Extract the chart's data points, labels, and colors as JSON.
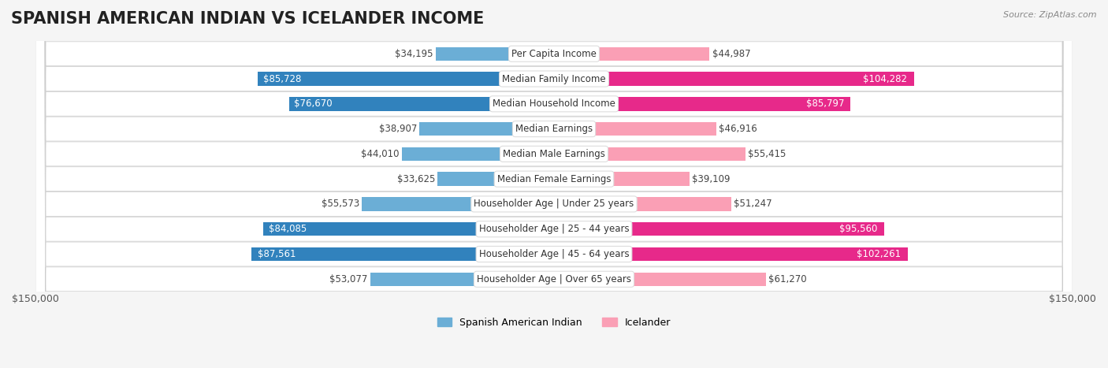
{
  "title": "SPANISH AMERICAN INDIAN VS ICELANDER INCOME",
  "source": "Source: ZipAtlas.com",
  "categories": [
    "Per Capita Income",
    "Median Family Income",
    "Median Household Income",
    "Median Earnings",
    "Median Male Earnings",
    "Median Female Earnings",
    "Householder Age | Under 25 years",
    "Householder Age | 25 - 44 years",
    "Householder Age | 45 - 64 years",
    "Householder Age | Over 65 years"
  ],
  "spanish_values": [
    34195,
    85728,
    76670,
    38907,
    44010,
    33625,
    55573,
    84085,
    87561,
    53077
  ],
  "icelander_values": [
    44987,
    104282,
    85797,
    46916,
    55415,
    39109,
    51247,
    95560,
    102261,
    61270
  ],
  "spanish_color": "#6baed6",
  "icelander_color": "#fa9fb5",
  "spanish_color_dark": "#3182bd",
  "icelander_color_dark": "#e7298a",
  "max_value": 150000,
  "bg_color": "#f5f5f5",
  "row_bg": "#ffffff",
  "label_bg": "#ffffff",
  "title_fontsize": 15,
  "axis_label_fontsize": 9,
  "value_fontsize": 8.5,
  "category_fontsize": 8.5
}
